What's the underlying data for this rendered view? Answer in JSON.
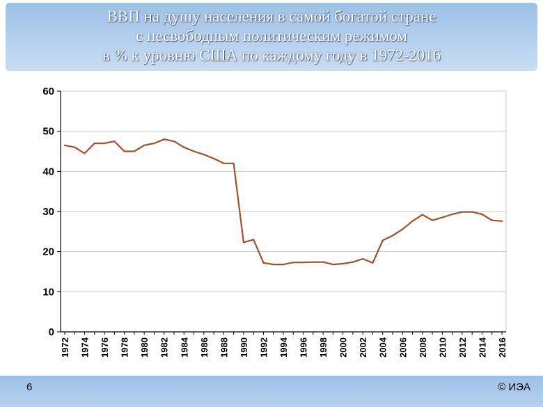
{
  "slide": {
    "title_lines": [
      "ВВП на душу населения в самой богатой стране",
      "с несвободным политическим режимом",
      "в % к уровню США по каждому году в 1972-2016"
    ],
    "page_number": "6",
    "copyright": "© ИЭА",
    "band_color": "#9cc1e6",
    "line_color": "#a0522d"
  },
  "chart_data": {
    "type": "line",
    "title": "",
    "xlabel": "",
    "ylabel": "",
    "ylim": [
      0,
      60
    ],
    "yticks": [
      0,
      10,
      20,
      30,
      40,
      50,
      60
    ],
    "xtick_labels": [
      "1972",
      "1974",
      "1976",
      "1978",
      "1980",
      "1982",
      "1984",
      "1986",
      "1988",
      "1990",
      "1992",
      "1994",
      "1996",
      "1998",
      "2000",
      "2002",
      "2004",
      "2006",
      "2008",
      "2010",
      "2012",
      "2014",
      "2016"
    ],
    "grid": "horizontal",
    "legend": "none",
    "x": [
      1972,
      1973,
      1974,
      1975,
      1976,
      1977,
      1978,
      1979,
      1980,
      1981,
      1982,
      1983,
      1984,
      1985,
      1986,
      1987,
      1988,
      1989,
      1990,
      1991,
      1992,
      1993,
      1994,
      1995,
      1996,
      1997,
      1998,
      1999,
      2000,
      2001,
      2002,
      2003,
      2004,
      2005,
      2006,
      2007,
      2008,
      2009,
      2010,
      2011,
      2012,
      2013,
      2014,
      2015,
      2016
    ],
    "values": [
      46.5,
      46,
      44.5,
      47,
      47,
      47.5,
      45,
      45,
      46.5,
      47,
      48,
      47.5,
      46,
      45,
      44.2,
      43.2,
      42,
      42,
      22.3,
      23,
      17.2,
      16.8,
      16.8,
      17.3,
      17.3,
      17.4,
      17.4,
      16.8,
      17,
      17.4,
      18.2,
      17.2,
      22.8,
      24,
      25.6,
      27.6,
      29.2,
      27.8,
      28.5,
      29.3,
      29.9,
      29.9,
      29.3,
      27.8,
      27.6
    ]
  }
}
